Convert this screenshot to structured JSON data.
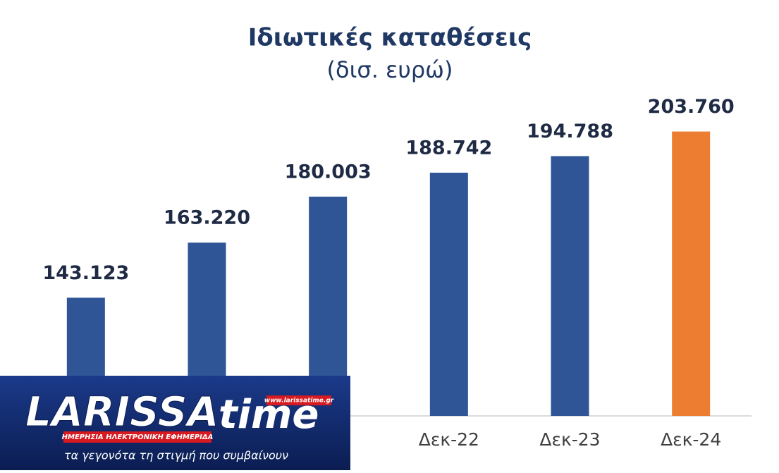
{
  "chart_data": {
    "type": "bar",
    "title": "Ιδιωτικές καταθέσεις",
    "subtitle": "(δισ. ευρώ)",
    "categories": [
      null,
      null,
      null,
      "Δεκ-22",
      "Δεκ-23",
      "Δεκ-24"
    ],
    "values": [
      143.123,
      163.22,
      180.003,
      188.742,
      194.788,
      203.76
    ],
    "value_labels": [
      "143.123",
      "163.220",
      "180.003",
      "188.742",
      "194.788",
      "203.760"
    ],
    "colors": [
      "#2f5597",
      "#2f5597",
      "#2f5597",
      "#2f5597",
      "#2f5597",
      "#ed7d31"
    ],
    "ylim": [
      100,
      225
    ]
  },
  "watermark": {
    "brand_left": "LARISSA",
    "brand_right": "time",
    "url": "www.larissatime.gr",
    "tagline": "ΗΜΕΡΗΣΙΑ ΗΛΕΚΤΡΟΝΙΚΗ ΕΦΗΜΕΡΙΔΑ",
    "slogan": "τα γεγονότα τη στιγμή που συμβαίνουν"
  }
}
